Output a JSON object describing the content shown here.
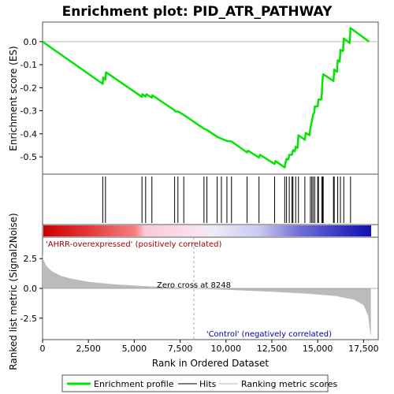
{
  "title": "Enrichment plot: PID_ATR_PATHWAY",
  "colors": {
    "profile": "#00e600",
    "hits": "#000000",
    "metric_fill": "#bbbbbb",
    "zero_line": "#aaaaaa",
    "frame": "#555555"
  },
  "chart_data": {
    "type": "line",
    "title": "Enrichment plot: PID_ATR_PATHWAY",
    "xlabel": "Rank in Ordered Dataset",
    "xlim": [
      0,
      18300
    ],
    "x_ticks": [
      0,
      2500,
      5000,
      7500,
      10000,
      12500,
      15000,
      17500
    ],
    "x_tick_labels": [
      "0",
      "2,500",
      "5,000",
      "7,500",
      "10,000",
      "12,500",
      "15,000",
      "17,500"
    ],
    "n_genes": 17900,
    "es_panel": {
      "ylabel": "Enrichment score (ES)",
      "ylim": [
        -0.575,
        0.085
      ],
      "y_ticks": [
        0.0,
        -0.1,
        -0.2,
        -0.3,
        -0.4,
        -0.5
      ],
      "y_tick_labels": [
        "0.0",
        "-0.1",
        "-0.2",
        "-0.3",
        "-0.4",
        "-0.5"
      ],
      "series_name": "Enrichment profile",
      "points": [
        [
          0,
          0.0
        ],
        [
          3280,
          -0.183
        ],
        [
          3300,
          -0.155
        ],
        [
          3420,
          -0.165
        ],
        [
          3460,
          -0.133
        ],
        [
          5420,
          -0.24
        ],
        [
          5440,
          -0.228
        ],
        [
          5620,
          -0.238
        ],
        [
          5660,
          -0.228
        ],
        [
          5960,
          -0.243
        ],
        [
          5990,
          -0.233
        ],
        [
          7200,
          -0.298
        ],
        [
          7230,
          -0.303
        ],
        [
          7380,
          -0.303
        ],
        [
          7700,
          -0.318
        ],
        [
          8800,
          -0.378
        ],
        [
          8960,
          -0.383
        ],
        [
          9520,
          -0.413
        ],
        [
          9750,
          -0.421
        ],
        [
          10050,
          -0.431
        ],
        [
          10300,
          -0.433
        ],
        [
          11150,
          -0.481
        ],
        [
          11200,
          -0.473
        ],
        [
          11800,
          -0.503
        ],
        [
          11850,
          -0.491
        ],
        [
          12650,
          -0.531
        ],
        [
          12700,
          -0.518
        ],
        [
          13200,
          -0.546
        ],
        [
          13220,
          -0.536
        ],
        [
          13300,
          -0.509
        ],
        [
          13400,
          -0.511
        ],
        [
          13450,
          -0.491
        ],
        [
          13600,
          -0.491
        ],
        [
          13650,
          -0.471
        ],
        [
          13750,
          -0.476
        ],
        [
          13800,
          -0.456
        ],
        [
          13900,
          -0.461
        ],
        [
          13950,
          -0.406
        ],
        [
          14300,
          -0.426
        ],
        [
          14340,
          -0.396
        ],
        [
          14550,
          -0.406
        ],
        [
          14600,
          -0.376
        ],
        [
          14680,
          -0.346
        ],
        [
          14750,
          -0.316
        ],
        [
          14820,
          -0.306
        ],
        [
          14840,
          -0.281
        ],
        [
          15000,
          -0.281
        ],
        [
          15040,
          -0.251
        ],
        [
          15200,
          -0.251
        ],
        [
          15230,
          -0.221
        ],
        [
          15260,
          -0.171
        ],
        [
          15300,
          -0.141
        ],
        [
          15860,
          -0.171
        ],
        [
          15900,
          -0.121
        ],
        [
          16050,
          -0.131
        ],
        [
          16090,
          -0.081
        ],
        [
          16200,
          -0.086
        ],
        [
          16240,
          -0.036
        ],
        [
          16380,
          -0.041
        ],
        [
          16420,
          0.014
        ],
        [
          16740,
          -0.006
        ],
        [
          16790,
          0.059
        ],
        [
          17800,
          0.0
        ]
      ]
    },
    "hits": [
      3280,
      3430,
      5420,
      5620,
      5960,
      7200,
      7380,
      7700,
      8800,
      8960,
      9520,
      9750,
      10050,
      10300,
      11150,
      11800,
      12650,
      13200,
      13300,
      13450,
      13600,
      13650,
      13800,
      13950,
      14300,
      14600,
      14680,
      14750,
      14840,
      15000,
      15040,
      15230,
      15260,
      15300,
      15860,
      15900,
      16090,
      16240,
      16420,
      16790
    ],
    "metric_panel": {
      "ylabel": "Ranked list metric (Signal2Noise)",
      "ylim": [
        -4.3,
        4.3
      ],
      "y_ticks": [
        2.5,
        0.0,
        -2.5
      ],
      "y_tick_labels": [
        "2.5",
        "0.0",
        "-2.5"
      ],
      "profile": [
        [
          0,
          2.9
        ],
        [
          50,
          2.4
        ],
        [
          200,
          1.9
        ],
        [
          500,
          1.45
        ],
        [
          1000,
          1.05
        ],
        [
          1500,
          0.85
        ],
        [
          2500,
          0.55
        ],
        [
          4000,
          0.33
        ],
        [
          6000,
          0.16
        ],
        [
          8248,
          0.0
        ],
        [
          10000,
          -0.12
        ],
        [
          12500,
          -0.28
        ],
        [
          14500,
          -0.45
        ],
        [
          16000,
          -0.65
        ],
        [
          17000,
          -0.95
        ],
        [
          17500,
          -1.4
        ],
        [
          17750,
          -2.3
        ],
        [
          17850,
          -3.6
        ],
        [
          17900,
          -4.1
        ]
      ],
      "zero_cross_label": "Zero cross at 8248",
      "zero_cross": 8248
    },
    "pos_label": "'AHRR-overexpressed' (positively correlated)",
    "neg_label": "'Control' (negatively correlated)",
    "legend": [
      "Enrichment profile",
      "Hits",
      "Ranking metric scores"
    ],
    "legend_position": "bottom"
  }
}
